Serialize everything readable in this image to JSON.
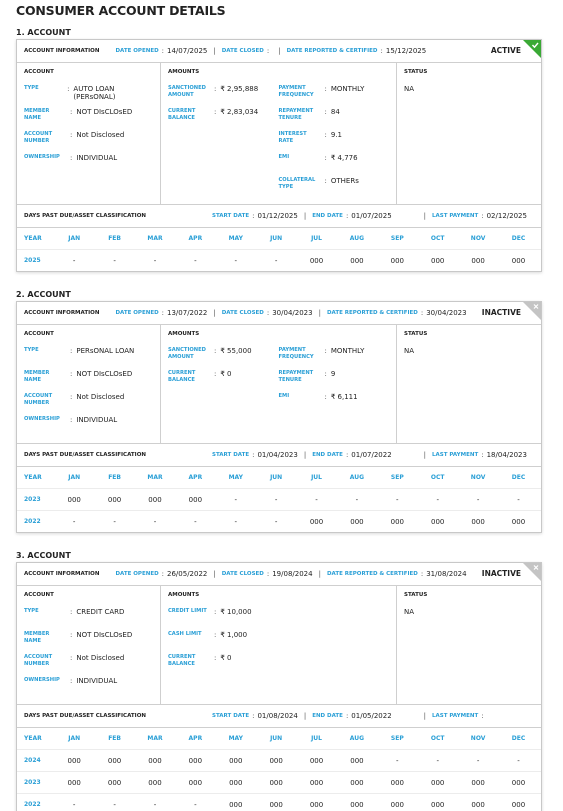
{
  "title": "CONSUMER ACCOUNT DETAILS",
  "separator": ":",
  "divider": "|",
  "table_header": [
    "YEAR",
    "JAN",
    "FEB",
    "MAR",
    "APR",
    "MAY",
    "JUN",
    "JUL",
    "AUG",
    "SEP",
    "OCT",
    "NOV",
    "DEC"
  ],
  "accounts": [
    {
      "heading": "1. ACCOUNT",
      "info_label": "ACCOUNT INFORMATION",
      "info": [
        {
          "label": "DATE OPENED",
          "value": "14/07/2025"
        },
        {
          "label": "DATE CLOSED"
        },
        {
          "label": "DATE REPORTED & CERTIFIED",
          "value": "15/12/2025"
        }
      ],
      "status_badge": "ACTIVE",
      "account": {
        "heading": "ACCOUNT",
        "fields": [
          {
            "label": "TYPE",
            "value": "AUTO LOAN (PERsONAL)"
          },
          {
            "label": "MEMBER NAME",
            "value": "NOT DIsCLOsED"
          },
          {
            "label": "ACCOUNT NUMBER",
            "value": "Not Disclosed"
          },
          {
            "label": "OWNERSHIP",
            "value": "INDIVIDUAL"
          }
        ]
      },
      "amounts": {
        "heading": "AMOUNTS",
        "left": [
          {
            "label": "SANCTIONED AMOUNT",
            "value": "₹ 2,95,888"
          },
          {
            "label": "CURRENT BALANCE",
            "value": "₹ 2,83,034"
          }
        ],
        "right": [
          {
            "label": "PAYMENT FREQUENCY",
            "value": "MONTHLY"
          },
          {
            "label": "REPAYMENT TENURE",
            "value": "84"
          },
          {
            "label": "INTEREST RATE",
            "value": "9.1"
          },
          {
            "label": "EMI",
            "value": "₹ 4,776"
          },
          {
            "label": "COLLATERAL TYPE",
            "value": "OTHERs"
          }
        ]
      },
      "status": {
        "heading": "STATUS",
        "value": "NA"
      },
      "dpd": {
        "label": "DAYS PAST DUE/ASSET CLASSIFICATION",
        "fields": [
          {
            "label": "START DATE",
            "value": "01/12/2025"
          },
          {
            "label": "END DATE",
            "value": "01/07/2025"
          },
          {
            "label": "LAST PAYMENT",
            "value": "02/12/2025"
          }
        ]
      },
      "rows": [
        [
          "2025",
          "-",
          "-",
          "-",
          "-",
          "-",
          "-",
          "000",
          "000",
          "000",
          "000",
          "000",
          "000"
        ]
      ]
    },
    {
      "heading": "2. ACCOUNT",
      "info_label": "ACCOUNT INFORMATION",
      "info": [
        {
          "label": "DATE OPENED",
          "value": "13/07/2022"
        },
        {
          "label": "DATE CLOSED",
          "value": "30/04/2023"
        },
        {
          "label": "DATE REPORTED & CERTIFIED",
          "value": "30/04/2023"
        }
      ],
      "status_badge": "INACTIVE",
      "account": {
        "heading": "ACCOUNT",
        "fields": [
          {
            "label": "TYPE",
            "value": "PERsONAL LOAN"
          },
          {
            "label": "MEMBER NAME",
            "value": "NOT DIsCLOsED"
          },
          {
            "label": "ACCOUNT NUMBER",
            "value": "Not Disclosed"
          },
          {
            "label": "OWNERSHIP",
            "value": "INDIVIDUAL"
          }
        ]
      },
      "amounts": {
        "heading": "AMOUNTS",
        "left": [
          {
            "label": "SANCTIONED AMOUNT",
            "value": "₹ 55,000"
          },
          {
            "label": "CURRENT BALANCE",
            "value": "₹ 0"
          }
        ],
        "right": [
          {
            "label": "PAYMENT FREQUENCY",
            "value": "MONTHLY"
          },
          {
            "label": "REPAYMENT TENURE",
            "value": "9"
          },
          {
            "label": "EMI",
            "value": "₹ 6,111"
          }
        ]
      },
      "status": {
        "heading": "STATUS",
        "value": "NA"
      },
      "dpd": {
        "label": "DAYS PAST DUE/ASSET CLASSIFICATION",
        "fields": [
          {
            "label": "START DATE",
            "value": "01/04/2023"
          },
          {
            "label": "END DATE",
            "value": "01/07/2022"
          },
          {
            "label": "LAST PAYMENT",
            "value": "18/04/2023"
          }
        ]
      },
      "rows": [
        [
          "2023",
          "000",
          "000",
          "000",
          "000",
          "-",
          "-",
          "-",
          "-",
          "-",
          "-",
          "-",
          "-"
        ],
        [
          "2022",
          "-",
          "-",
          "-",
          "-",
          "-",
          "-",
          "000",
          "000",
          "000",
          "000",
          "000",
          "000"
        ]
      ]
    },
    {
      "heading": "3. ACCOUNT",
      "info_label": "ACCOUNT INFORMATION",
      "info": [
        {
          "label": "DATE OPENED",
          "value": "26/05/2022"
        },
        {
          "label": "DATE CLOSED",
          "value": "19/08/2024"
        },
        {
          "label": "DATE REPORTED & CERTIFIED",
          "value": "31/08/2024"
        }
      ],
      "status_badge": "INACTIVE",
      "account": {
        "heading": "ACCOUNT",
        "fields": [
          {
            "label": "TYPE",
            "value": "CREDIT CARD"
          },
          {
            "label": "MEMBER NAME",
            "value": "NOT DIsCLOsED"
          },
          {
            "label": "ACCOUNT NUMBER",
            "value": "Not Disclosed"
          },
          {
            "label": "OWNERSHIP",
            "value": "INDIVIDUAL"
          }
        ]
      },
      "amounts": {
        "heading": "AMOUNTS",
        "left": [
          {
            "label": "CREDIT LIMIT",
            "value": "₹ 10,000"
          },
          {
            "label": "CASH LIMIT",
            "value": "₹ 1,000"
          },
          {
            "label": "CURRENT BALANCE",
            "value": "₹ 0"
          }
        ],
        "right": []
      },
      "status": {
        "heading": "STATUS",
        "value": "NA"
      },
      "dpd": {
        "label": "DAYS PAST DUE/ASSET CLASSIFICATION",
        "fields": [
          {
            "label": "START DATE",
            "value": "01/08/2024"
          },
          {
            "label": "END DATE",
            "value": "01/05/2022"
          },
          {
            "label": "LAST PAYMENT"
          }
        ]
      },
      "rows": [
        [
          "2024",
          "000",
          "000",
          "000",
          "000",
          "000",
          "000",
          "000",
          "000",
          "-",
          "-",
          "-",
          "-"
        ],
        [
          "2023",
          "000",
          "000",
          "000",
          "000",
          "000",
          "000",
          "000",
          "000",
          "000",
          "000",
          "000",
          "000"
        ],
        [
          "2022",
          "-",
          "-",
          "-",
          "-",
          "000",
          "000",
          "000",
          "000",
          "000",
          "000",
          "000",
          "000"
        ]
      ]
    }
  ]
}
